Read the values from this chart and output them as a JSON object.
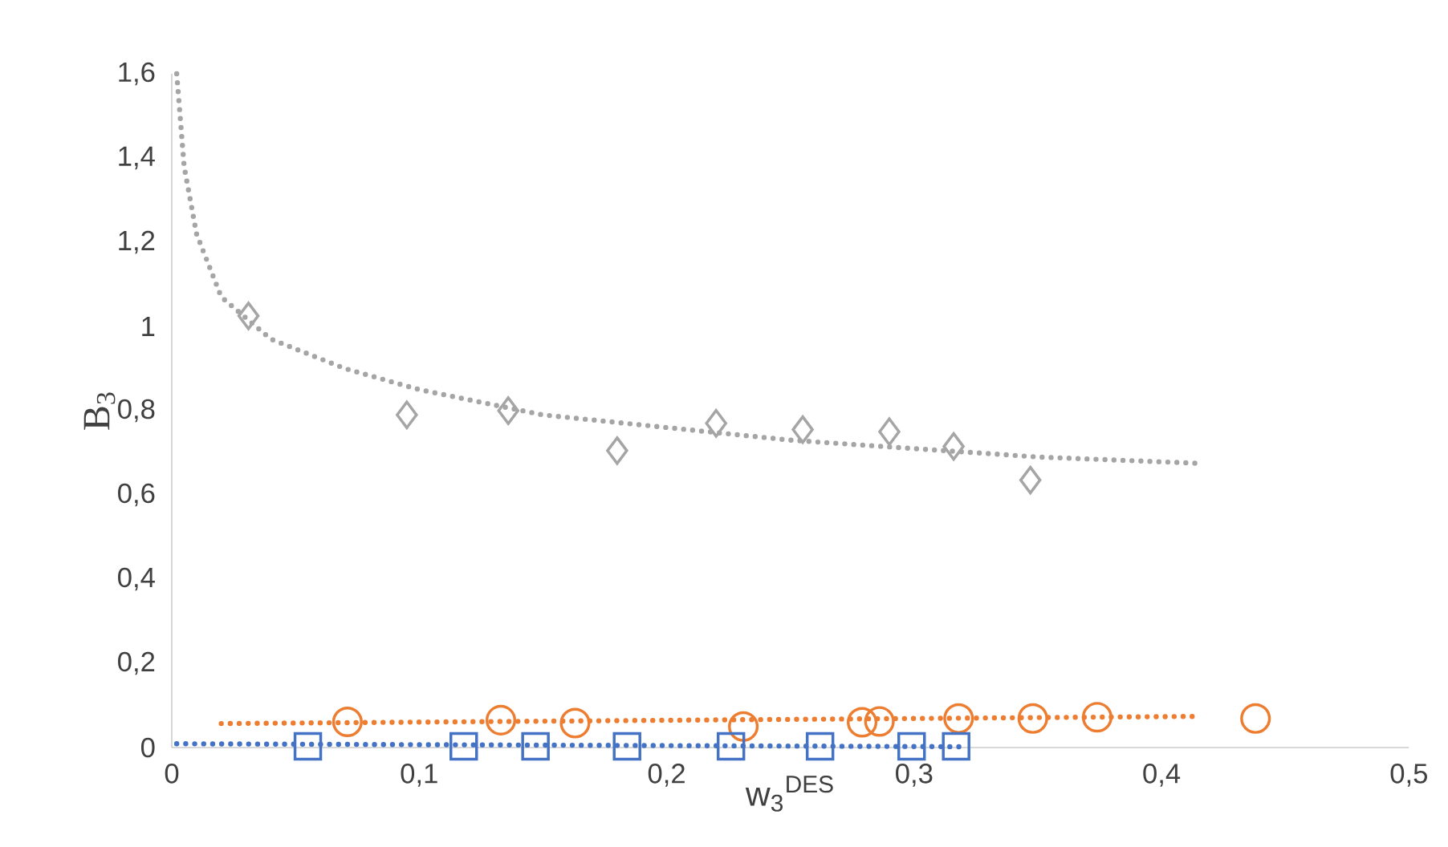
{
  "chart_data": {
    "type": "scatter",
    "xlabel": "w$_{3}$$^{DES}$",
    "ylabel": "B$_{3}$",
    "xlim": [
      0,
      0.5
    ],
    "ylim": [
      0,
      1.6
    ],
    "xticks": [
      0,
      {
        "value": 0.1,
        "label": "0,1"
      },
      {
        "value": 0.2,
        "label": "0,2"
      },
      {
        "value": 0.3,
        "label": "0,3"
      },
      {
        "value": 0.4,
        "label": "0,4"
      },
      {
        "value": 0.5,
        "label": "0,5"
      }
    ],
    "yticks": [
      0,
      {
        "value": 0.2,
        "label": "0,2"
      },
      {
        "value": 0.4,
        "label": "0,4"
      },
      {
        "value": 0.6,
        "label": "0,6"
      },
      {
        "value": 0.8,
        "label": "0,8"
      },
      {
        "value": 1,
        "label": "1"
      },
      {
        "value": 1.2,
        "label": "1,2"
      },
      {
        "value": 1.4,
        "label": "1,4"
      },
      {
        "value": 1.6,
        "label": "1,6"
      }
    ],
    "series": [
      {
        "marker": "diamond",
        "color": "#a5a5a5",
        "x": [
          0.031,
          0.095,
          0.136,
          0.18,
          0.22,
          0.255,
          0.29,
          0.316,
          0.347
        ],
        "values": [
          1.025,
          0.79,
          0.8,
          0.705,
          0.77,
          0.755,
          0.75,
          0.715,
          0.635
        ]
      },
      {
        "marker": "circle",
        "color": "#ed7d31",
        "x": [
          0.071,
          0.133,
          0.163,
          0.231,
          0.279,
          0.286,
          0.318,
          0.348,
          0.374,
          0.438
        ],
        "values": [
          0.061,
          0.065,
          0.058,
          0.05,
          0.06,
          0.062,
          0.069,
          0.069,
          0.072,
          0.069
        ]
      },
      {
        "marker": "square",
        "color": "#4472c4",
        "x": [
          0.055,
          0.118,
          0.147,
          0.184,
          0.226,
          0.262,
          0.299,
          0.317
        ],
        "values": [
          0.003,
          0.003,
          0.003,
          0.003,
          0.003,
          0.003,
          0.003,
          0.003
        ]
      },
      {
        "type": "line",
        "marker": "none",
        "line_style": "dotted",
        "color": "#a5a5a5",
        "x": [
          0.002,
          0.005,
          0.01,
          0.02,
          0.04,
          0.07,
          0.1,
          0.15,
          0.2,
          0.25,
          0.3,
          0.35,
          0.415
        ],
        "values": [
          1.6,
          1.38,
          1.22,
          1.07,
          0.97,
          0.9,
          0.85,
          0.79,
          0.76,
          0.73,
          0.71,
          0.69,
          0.675
        ]
      },
      {
        "type": "line",
        "marker": "none",
        "line_style": "dotted",
        "color": "#ed7d31",
        "x": [
          0.02,
          0.415
        ],
        "values": [
          0.057,
          0.074
        ]
      },
      {
        "type": "line",
        "marker": "none",
        "line_style": "dotted",
        "color": "#4472c4",
        "x": [
          0.002,
          0.32
        ],
        "values": [
          0.009,
          0.002
        ]
      }
    ]
  }
}
